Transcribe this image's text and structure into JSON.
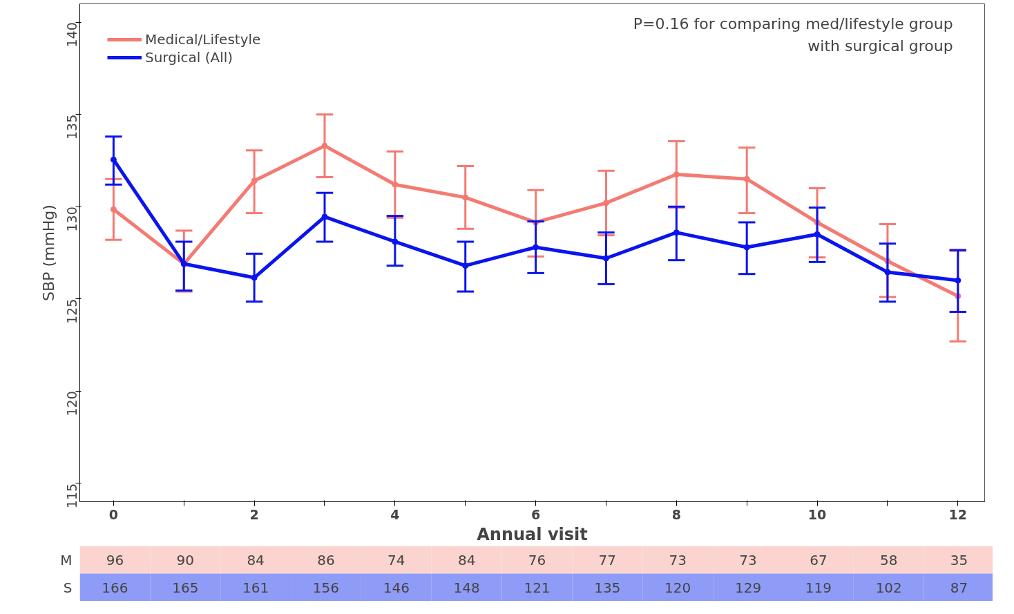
{
  "chart_data": [
    {
      "type": "line",
      "xlabel": "Annual visit",
      "ylabel": "SBP (mmHg)",
      "x": [
        0,
        1,
        2,
        3,
        4,
        5,
        6,
        7,
        8,
        9,
        10,
        11,
        12
      ],
      "series": [
        {
          "name": "Medical/Lifestyle",
          "color": "#f47a72",
          "values": [
            129.85,
            126.9,
            131.4,
            133.3,
            131.2,
            130.5,
            129.15,
            130.2,
            131.75,
            131.5,
            129.15,
            127.05,
            125.15
          ],
          "errors": [
            [
              128.2,
              131.5
            ],
            [
              125.4,
              128.7
            ],
            [
              129.65,
              133.05
            ],
            [
              131.6,
              135.0
            ],
            [
              129.4,
              133.0
            ],
            [
              128.8,
              132.2
            ],
            [
              127.3,
              130.9
            ],
            [
              128.45,
              131.95
            ],
            [
              129.95,
              133.55
            ],
            [
              129.65,
              133.2
            ],
            [
              127.25,
              131.0
            ],
            [
              125.1,
              129.05
            ],
            [
              122.7,
              127.6
            ]
          ]
        },
        {
          "name": "Surgical (All)",
          "color": "#0a14ee",
          "values": [
            132.55,
            126.9,
            126.15,
            129.45,
            128.1,
            126.8,
            127.8,
            127.2,
            128.6,
            127.8,
            128.5,
            126.45,
            126.0
          ],
          "errors": [
            [
              131.2,
              133.8
            ],
            [
              125.45,
              128.1
            ],
            [
              124.85,
              127.45
            ],
            [
              128.1,
              130.75
            ],
            [
              126.8,
              129.5
            ],
            [
              125.4,
              128.1
            ],
            [
              126.4,
              129.2
            ],
            [
              125.8,
              128.6
            ],
            [
              127.1,
              130.0
            ],
            [
              126.35,
              129.15
            ],
            [
              127.0,
              129.95
            ],
            [
              124.85,
              128.0
            ],
            [
              124.3,
              127.65
            ]
          ]
        }
      ],
      "xlim": [
        -0.48,
        12.38
      ],
      "ylim": [
        114,
        141
      ],
      "xticks": [
        0,
        {
          "value": 1,
          "label": null
        },
        2,
        {
          "value": 3,
          "label": null
        },
        4,
        {
          "value": 5,
          "label": null
        },
        6,
        {
          "value": 7,
          "label": null
        },
        8,
        {
          "value": 9,
          "label": null
        },
        10,
        {
          "value": 11,
          "label": null
        },
        12
      ],
      "yticks": [
        115,
        120,
        125,
        130,
        135,
        140
      ],
      "grid": false,
      "legend": "top left",
      "marker": "circle",
      "line_style": "solid",
      "annotations": [
        "P=0.16 for comparing med/lifestyle group\nwith surgical group"
      ]
    },
    {
      "type": "heatmap",
      "categories": [
        null,
        null,
        null,
        null,
        null,
        null,
        null,
        null,
        null,
        null,
        null,
        null,
        null
      ],
      "y_categories": [
        "M",
        "S"
      ],
      "colors": [
        "#fbd3cf",
        "#8e9cf7"
      ],
      "data_labels": true,
      "cells": [
        [
          96,
          90,
          84,
          86,
          74,
          84,
          76,
          77,
          73,
          73,
          67,
          58,
          35
        ],
        [
          166,
          165,
          161,
          156,
          146,
          148,
          121,
          135,
          120,
          129,
          119,
          102,
          87
        ]
      ]
    }
  ]
}
